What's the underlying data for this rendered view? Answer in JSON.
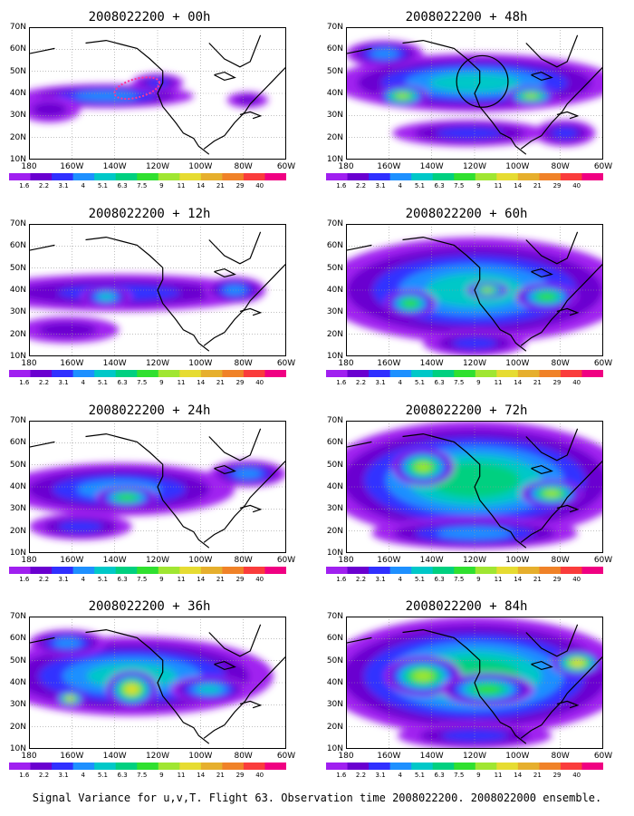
{
  "panels": [
    {
      "title": "2008022200 + 00h"
    },
    {
      "title": "2008022200 + 48h"
    },
    {
      "title": "2008022200 + 12h"
    },
    {
      "title": "2008022200 + 60h"
    },
    {
      "title": "2008022200 + 24h"
    },
    {
      "title": "2008022200 + 72h"
    },
    {
      "title": "2008022200 + 36h"
    },
    {
      "title": "2008022200 + 84h"
    }
  ],
  "lat_labels": [
    "70N",
    "60N",
    "50N",
    "40N",
    "30N",
    "20N",
    "10N"
  ],
  "lon_labels": [
    "180",
    "160W",
    "140W",
    "120W",
    "100W",
    "80W",
    "60W"
  ],
  "colorbar": {
    "labels": [
      "1.6",
      "2.2",
      "3.1",
      "4",
      "5.1",
      "6.3",
      "7.5",
      "9",
      "11",
      "14",
      "21",
      "29",
      "40"
    ],
    "colors": [
      "#a020f0",
      "#6a00d0",
      "#3030ff",
      "#1e90ff",
      "#00c8c8",
      "#00d080",
      "#30e030",
      "#a0e632",
      "#e6dc32",
      "#e6af2d",
      "#f08228",
      "#fa3c3c",
      "#f00082"
    ]
  },
  "footer": "Signal Variance for u,v,T. Flight 63. Observation time 2008022200. 2008022000 ensemble."
}
